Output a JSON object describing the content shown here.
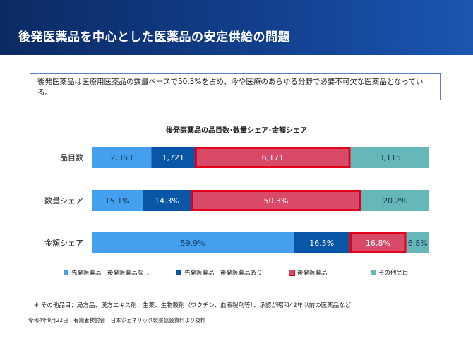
{
  "header": {
    "title": "後発医薬品を中心とした医薬品の安定供給の問題"
  },
  "summary": {
    "text": "後発医薬品は医療用医薬品の数量ベースで50.3%を占め、今や医療のあらゆる分野で必要不可欠な医薬品となっている。"
  },
  "chart_data": {
    "type": "bar",
    "orientation": "horizontal",
    "stacked": true,
    "normalized_to_100": true,
    "title": "後発医薬品の品目数･数量シェア･金額シェア",
    "categories": [
      "品目数",
      "数量シェア",
      "金額シェア"
    ],
    "series": [
      {
        "name": "先発医薬品　後発医薬品なし",
        "color": "#44a0ee",
        "values": [
          2363,
          15.1,
          59.9
        ],
        "labels": [
          "2,363",
          "15.1%",
          "59.9%"
        ]
      },
      {
        "name": "先発医薬品　後発医薬品あり",
        "color": "#0a56a6",
        "values": [
          1721,
          14.3,
          16.5
        ],
        "labels": [
          "1,721",
          "14.3%",
          "16.5%"
        ]
      },
      {
        "name": "後発医薬品",
        "color": "#d94a68",
        "values": [
          6171,
          50.3,
          16.8
        ],
        "labels": [
          "6,171",
          "50.3%",
          "16.8%"
        ],
        "highlighted": true
      },
      {
        "name": "その他品目",
        "color": "#66b8b8",
        "values": [
          3115,
          20.2,
          6.8
        ],
        "labels": [
          "3,115",
          "20.2%",
          "6.8%"
        ]
      }
    ],
    "legend_position": "bottom",
    "grid": false
  },
  "footnote": {
    "text": "※ その他品目：局方品、漢方エキス剤、生薬、生物製剤（ワクチン、血液製剤等）、承認が昭和42年以前の医薬品など"
  },
  "source": {
    "text": "令和4年9月22日　有識者検討会　日本ジェネリック製薬協会資料より抜粋"
  }
}
